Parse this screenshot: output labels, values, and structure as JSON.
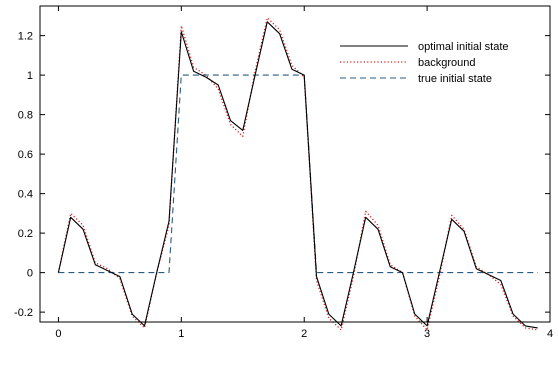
{
  "chart_data": {
    "type": "line",
    "title": "",
    "xlabel": "",
    "ylabel": "",
    "xlim": [
      -0.15,
      4.0
    ],
    "ylim": [
      -0.25,
      1.35
    ],
    "xticks": [
      0,
      1,
      2,
      3,
      4
    ],
    "xtick_labels": [
      "0",
      "1",
      "2",
      "3",
      "4"
    ],
    "yticks": [
      -0.2,
      0,
      0.2,
      0.4,
      0.6,
      0.8,
      1,
      1.2
    ],
    "ytick_labels": [
      "-0.2",
      "0",
      "0.2",
      "0.4",
      "0.6",
      "0.8",
      "1",
      "1.2"
    ],
    "grid": false,
    "legend_position": "top-right",
    "series": [
      {
        "name": "optimal initial state",
        "color": "#000000",
        "style": "solid",
        "x": [
          0,
          0.1,
          0.2,
          0.3,
          0.4,
          0.5,
          0.6,
          0.7,
          0.8,
          0.9,
          1.0,
          1.1,
          1.2,
          1.3,
          1.4,
          1.5,
          1.6,
          1.7,
          1.8,
          1.9,
          2.0,
          2.1,
          2.2,
          2.3,
          2.4,
          2.5,
          2.6,
          2.7,
          2.8,
          2.9,
          3.0,
          3.1,
          3.2,
          3.3,
          3.4,
          3.5,
          3.6,
          3.7,
          3.8,
          3.9
        ],
        "y": [
          0.0,
          0.28,
          0.22,
          0.04,
          0.01,
          -0.02,
          -0.21,
          -0.27,
          0.0,
          0.26,
          1.22,
          1.02,
          0.99,
          0.95,
          0.77,
          0.72,
          1.0,
          1.27,
          1.21,
          1.03,
          1.0,
          -0.02,
          -0.21,
          -0.27,
          0.0,
          0.28,
          0.22,
          0.03,
          0.0,
          -0.21,
          -0.27,
          0.0,
          0.27,
          0.21,
          0.02,
          -0.01,
          -0.04,
          -0.21,
          -0.27,
          -0.28
        ]
      },
      {
        "name": "background",
        "color": "#d42020",
        "style": "dotted",
        "x": [
          0,
          0.1,
          0.2,
          0.3,
          0.4,
          0.5,
          0.6,
          0.7,
          0.8,
          0.9,
          1.0,
          1.1,
          1.2,
          1.3,
          1.4,
          1.5,
          1.6,
          1.7,
          1.8,
          1.9,
          2.0,
          2.1,
          2.2,
          2.3,
          2.4,
          2.5,
          2.6,
          2.7,
          2.8,
          2.9,
          3.0,
          3.1,
          3.2,
          3.3,
          3.4,
          3.5,
          3.6,
          3.7,
          3.8,
          3.9
        ],
        "y": [
          0.0,
          0.3,
          0.24,
          0.05,
          0.02,
          -0.03,
          -0.22,
          -0.28,
          0.0,
          0.24,
          1.25,
          1.04,
          1.0,
          0.93,
          0.75,
          0.69,
          1.02,
          1.29,
          1.23,
          1.05,
          0.99,
          -0.04,
          -0.23,
          -0.29,
          -0.02,
          0.31,
          0.24,
          0.04,
          0.0,
          -0.22,
          -0.29,
          -0.02,
          0.29,
          0.22,
          0.03,
          -0.01,
          -0.06,
          -0.22,
          -0.28,
          -0.29
        ]
      },
      {
        "name": "true initial state",
        "color": "#2a5c80",
        "style": "dashed",
        "x": [
          0,
          0.9,
          1.0,
          2.0,
          2.1,
          3.9
        ],
        "y": [
          0,
          0,
          1,
          1,
          0,
          0
        ]
      }
    ]
  }
}
